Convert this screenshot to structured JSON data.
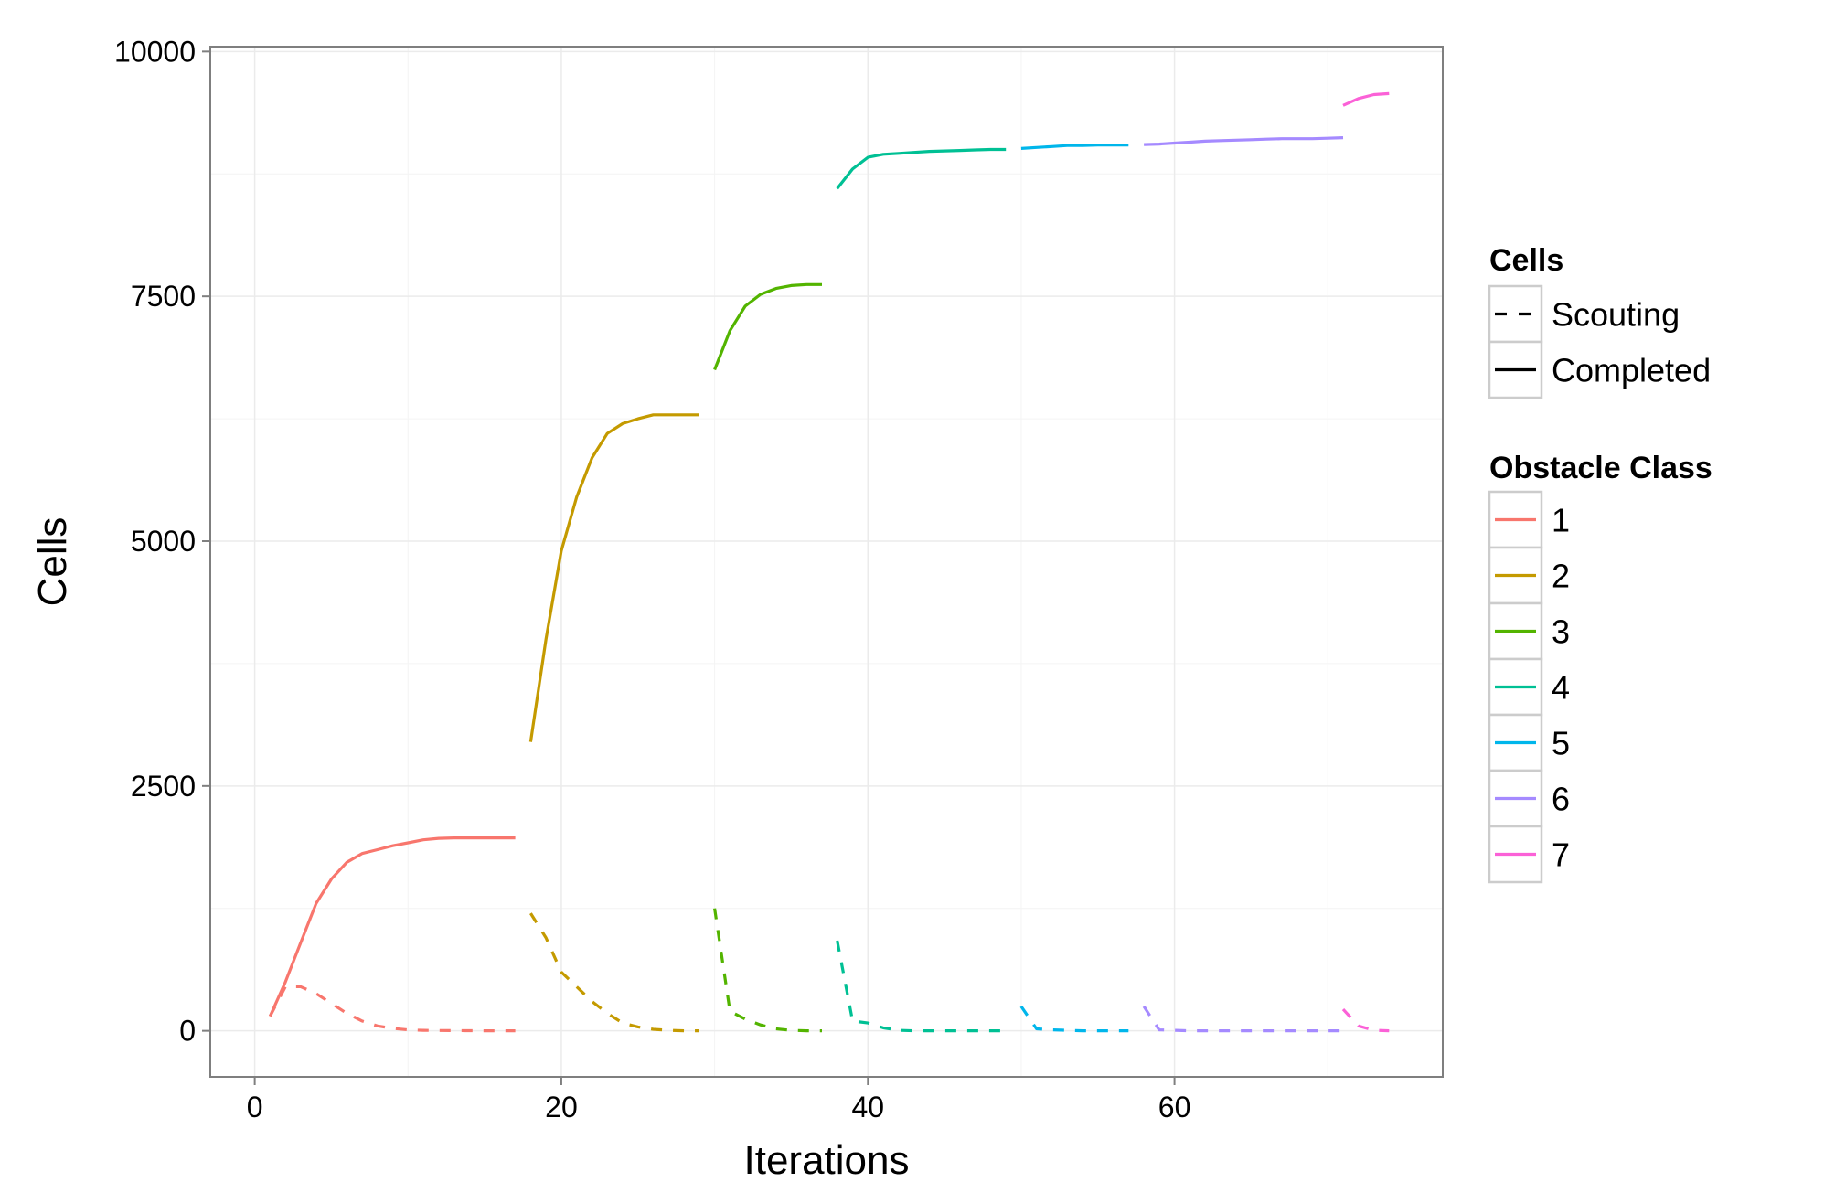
{
  "chart_data": {
    "type": "line",
    "title": "",
    "xlabel": "Iterations",
    "ylabel": "Cells",
    "xlim": [
      -2.9,
      77.5
    ],
    "ylim": [
      -470,
      10050
    ],
    "x_ticks": [
      0,
      20,
      40,
      60
    ],
    "x_tick_labels": [
      "0",
      "20",
      "40",
      "60"
    ],
    "y_ticks": [
      0,
      2500,
      5000,
      7500,
      10000
    ],
    "y_tick_labels": [
      "0",
      "2500",
      "5000",
      "7500",
      "10000"
    ],
    "grid": true,
    "legend_position": "right",
    "legends": {
      "linetype": {
        "title": "Cells",
        "entries": [
          {
            "label": "Scouting",
            "dash": "dashed"
          },
          {
            "label": "Completed",
            "dash": "solid"
          }
        ]
      },
      "color": {
        "title": "Obstacle Class",
        "entries": [
          {
            "label": "1",
            "color": "#F8766D"
          },
          {
            "label": "2",
            "color": "#C49A00"
          },
          {
            "label": "3",
            "color": "#53B400"
          },
          {
            "label": "4",
            "color": "#00C094"
          },
          {
            "label": "5",
            "color": "#00B6EB"
          },
          {
            "label": "6",
            "color": "#A58AFF"
          },
          {
            "label": "7",
            "color": "#FB61D7"
          }
        ]
      }
    },
    "series": [
      {
        "class": "1",
        "cells": "Completed",
        "color": "#F8766D",
        "x": [
          1,
          2,
          3,
          4,
          5,
          6,
          7,
          8,
          9,
          10,
          11,
          12,
          13,
          14,
          15,
          16,
          17
        ],
        "y": [
          150,
          500,
          900,
          1300,
          1550,
          1720,
          1810,
          1850,
          1890,
          1920,
          1950,
          1965,
          1970,
          1970,
          1970,
          1970,
          1970
        ]
      },
      {
        "class": "1",
        "cells": "Scouting",
        "color": "#F8766D",
        "x": [
          1,
          2,
          3,
          4,
          5,
          6,
          7,
          8,
          9,
          10,
          11,
          12,
          13,
          14,
          15,
          16,
          17
        ],
        "y": [
          150,
          450,
          450,
          380,
          280,
          180,
          100,
          50,
          25,
          10,
          5,
          3,
          2,
          1,
          0,
          0,
          0
        ]
      },
      {
        "class": "2",
        "cells": "Completed",
        "color": "#C49A00",
        "x": [
          18,
          19,
          20,
          21,
          22,
          23,
          24,
          25,
          26,
          27,
          28,
          29
        ],
        "y": [
          2950,
          4000,
          4900,
          5450,
          5850,
          6100,
          6200,
          6250,
          6290,
          6290,
          6290,
          6290
        ]
      },
      {
        "class": "2",
        "cells": "Scouting",
        "color": "#C49A00",
        "x": [
          18,
          19,
          20,
          21,
          22,
          23,
          24,
          25,
          26,
          27,
          28,
          29
        ],
        "y": [
          1200,
          950,
          600,
          450,
          300,
          180,
          80,
          40,
          15,
          5,
          0,
          0
        ]
      },
      {
        "class": "3",
        "cells": "Completed",
        "color": "#53B400",
        "x": [
          30,
          31,
          32,
          33,
          34,
          35,
          36,
          37
        ],
        "y": [
          6750,
          7150,
          7400,
          7520,
          7580,
          7610,
          7620,
          7620
        ]
      },
      {
        "class": "3",
        "cells": "Scouting",
        "color": "#53B400",
        "x": [
          30,
          31,
          32,
          33,
          34,
          35,
          36,
          37
        ],
        "y": [
          1250,
          200,
          120,
          60,
          20,
          5,
          0,
          0
        ]
      },
      {
        "class": "4",
        "cells": "Completed",
        "color": "#00C094",
        "x": [
          38,
          39,
          40,
          41,
          42,
          43,
          44,
          45,
          46,
          47,
          48,
          49
        ],
        "y": [
          8600,
          8800,
          8920,
          8950,
          8960,
          8970,
          8980,
          8985,
          8990,
          8995,
          9000,
          9000
        ]
      },
      {
        "class": "4",
        "cells": "Scouting",
        "color": "#00C094",
        "x": [
          38,
          39,
          40,
          41,
          42,
          43,
          44,
          45,
          46,
          47,
          48,
          49
        ],
        "y": [
          920,
          100,
          80,
          30,
          5,
          0,
          0,
          0,
          0,
          0,
          0,
          0
        ]
      },
      {
        "class": "5",
        "cells": "Completed",
        "color": "#00B6EB",
        "x": [
          50,
          51,
          52,
          53,
          54,
          55,
          56,
          57
        ],
        "y": [
          9010,
          9020,
          9030,
          9040,
          9040,
          9045,
          9045,
          9045
        ]
      },
      {
        "class": "5",
        "cells": "Scouting",
        "color": "#00B6EB",
        "x": [
          50,
          51,
          52,
          53,
          54,
          55,
          56,
          57
        ],
        "y": [
          250,
          20,
          10,
          5,
          0,
          0,
          0,
          0
        ]
      },
      {
        "class": "6",
        "cells": "Completed",
        "color": "#A58AFF",
        "x": [
          58,
          59,
          60,
          61,
          62,
          63,
          64,
          65,
          66,
          67,
          68,
          69,
          70,
          71
        ],
        "y": [
          9050,
          9055,
          9065,
          9075,
          9085,
          9090,
          9095,
          9100,
          9105,
          9110,
          9110,
          9110,
          9115,
          9120
        ]
      },
      {
        "class": "6",
        "cells": "Scouting",
        "color": "#A58AFF",
        "x": [
          58,
          59,
          60,
          61,
          62,
          63,
          64,
          65,
          66,
          67,
          68,
          69,
          70,
          71
        ],
        "y": [
          250,
          10,
          5,
          0,
          0,
          0,
          0,
          0,
          0,
          0,
          0,
          0,
          0,
          0
        ]
      },
      {
        "class": "7",
        "cells": "Completed",
        "color": "#FB61D7",
        "x": [
          71,
          72,
          73,
          74
        ],
        "y": [
          9450,
          9520,
          9560,
          9570
        ]
      },
      {
        "class": "7",
        "cells": "Scouting",
        "color": "#FB61D7",
        "x": [
          71,
          72,
          73,
          74
        ],
        "y": [
          220,
          50,
          5,
          0
        ]
      }
    ]
  }
}
